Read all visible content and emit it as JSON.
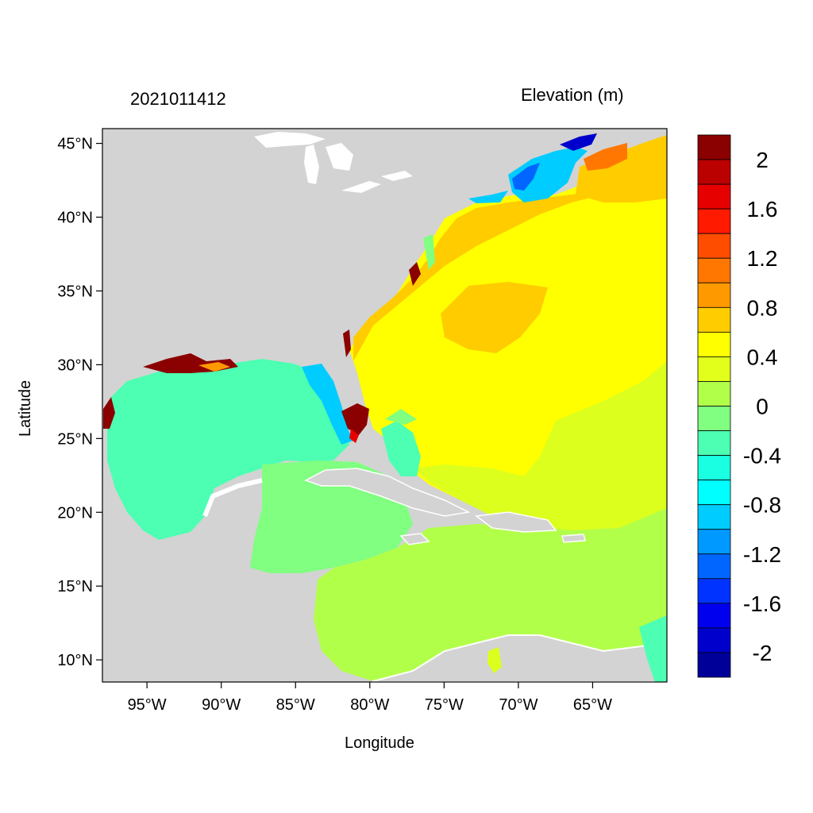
{
  "header": {
    "date_label": "2021011412",
    "variable_label": "Elevation (m)"
  },
  "axes": {
    "xlabel": "Longitude",
    "ylabel": "Latitude",
    "x_ticks": [
      "95°W",
      "90°W",
      "85°W",
      "80°W",
      "75°W",
      "70°W",
      "65°W"
    ],
    "x_tick_values": [
      -95,
      -90,
      -85,
      -80,
      -75,
      -70,
      -65
    ],
    "y_ticks": [
      "45°N",
      "40°N",
      "35°N",
      "30°N",
      "25°N",
      "20°N",
      "15°N",
      "10°N"
    ],
    "y_tick_values": [
      45,
      40,
      35,
      30,
      25,
      20,
      15,
      10
    ],
    "lon_range": [
      -98,
      -60
    ],
    "lat_range": [
      8.5,
      46
    ]
  },
  "colorbar": {
    "labels": [
      "2",
      "1.6",
      "1.2",
      "0.8",
      "0.4",
      "0",
      "-0.4",
      "-0.8",
      "-1.2",
      "-1.6",
      "-2"
    ],
    "colors_top_to_bottom": [
      "#8b0000",
      "#bb0000",
      "#e60000",
      "#ff1a00",
      "#ff4d00",
      "#ff7700",
      "#ff9900",
      "#ffcc00",
      "#ffff00",
      "#e1ff1a",
      "#b2ff4a",
      "#80ff80",
      "#4dffb2",
      "#1affe1",
      "#00ffff",
      "#00ccff",
      "#0099ff",
      "#0066ff",
      "#0033ff",
      "#0000ee",
      "#0000cc",
      "#000099"
    ]
  },
  "map_colors": {
    "land": "#d3d3d3",
    "water_outline": "#ffffff"
  }
}
